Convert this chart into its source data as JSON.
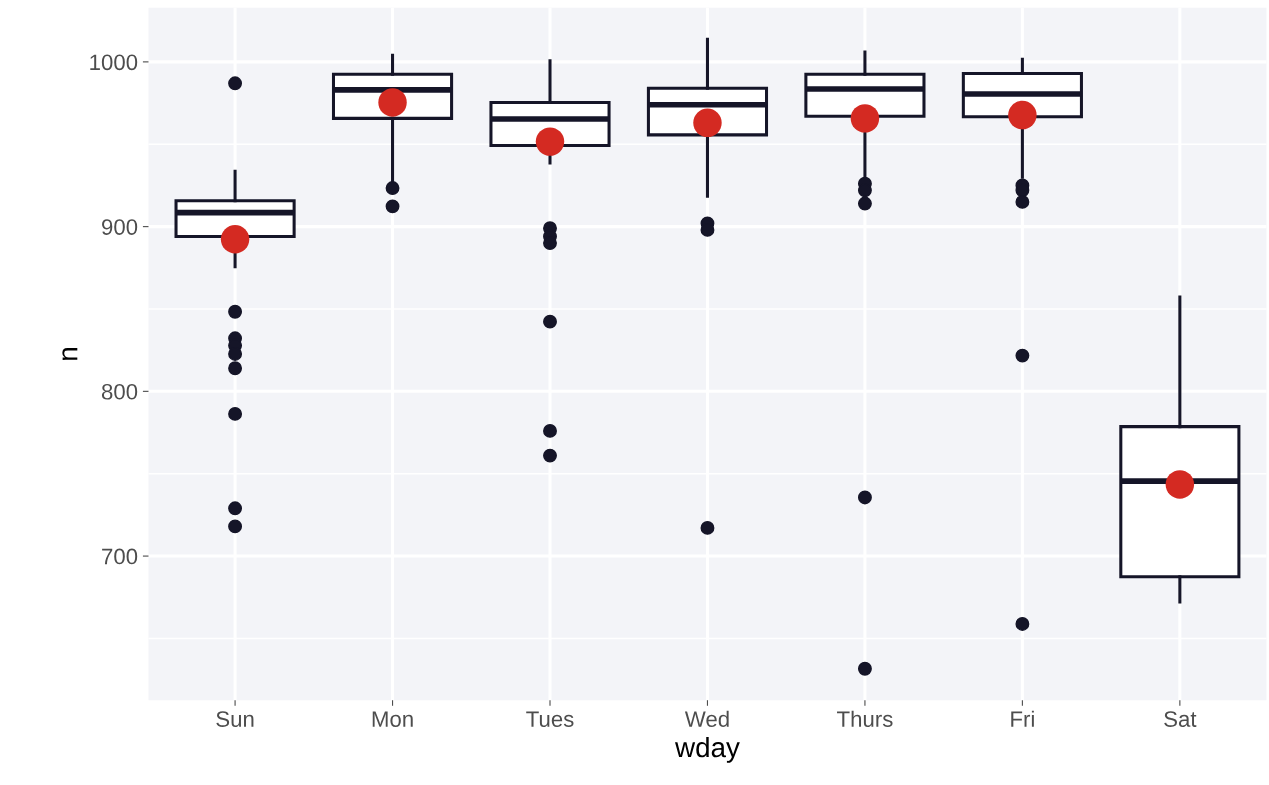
{
  "chart_data": {
    "type": "box",
    "xlabel": "wday",
    "ylabel": "n",
    "categories": [
      "Sun",
      "Mon",
      "Tues",
      "Wed",
      "Thurs",
      "Fri",
      "Sat"
    ],
    "ylim": [
      612.5,
      1032.8
    ],
    "yticks": [
      700,
      800,
      900,
      1000
    ],
    "grid": true,
    "boxes": [
      {
        "low": 875.6,
        "q1": 894,
        "median": 908.5,
        "q3": 915.7,
        "high": 933.6,
        "outliers": [
          987,
          848.3,
          832.2,
          827.8,
          822.7,
          814,
          786.3,
          729,
          718
        ]
      },
      {
        "low": 926,
        "q1": 965.7,
        "median": 983,
        "q3": 992.5,
        "high": 1004,
        "outliers": [
          923.4,
          912.3
        ]
      },
      {
        "low": 938.7,
        "q1": 949.2,
        "median": 965.3,
        "q3": 975.4,
        "high": 1000.6,
        "outliers": [
          899,
          894,
          890,
          842.3,
          776,
          761
        ]
      },
      {
        "low": 918.5,
        "q1": 955.7,
        "median": 974,
        "q3": 984,
        "high": 1013.7,
        "outliers": [
          902,
          898,
          717.1
        ]
      },
      {
        "low": 930,
        "q1": 967,
        "median": 983.5,
        "q3": 992.5,
        "high": 1006,
        "outliers": [
          926,
          922,
          914,
          735.6,
          631.6
        ]
      },
      {
        "low": 930,
        "q1": 966.7,
        "median": 980.5,
        "q3": 993,
        "high": 1001.6,
        "outliers": [
          925,
          922,
          915,
          821.7,
          658.8
        ]
      },
      {
        "low": 672.1,
        "q1": 687.4,
        "median": 745.5,
        "q3": 778.6,
        "high": 857.2
      }
    ],
    "series": [
      {
        "type": "scatter",
        "x": [
          "Sun",
          "Mon",
          "Tues",
          "Wed",
          "Thurs",
          "Fri",
          "Sat"
        ],
        "values": [
          892.3,
          975.4,
          951.6,
          963,
          965.7,
          967.7,
          743.5
        ],
        "color": "#d42a22"
      }
    ]
  }
}
